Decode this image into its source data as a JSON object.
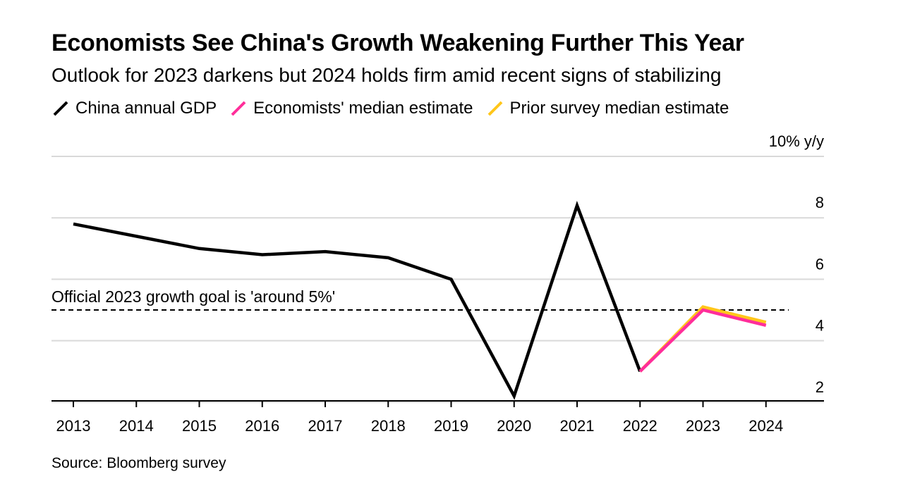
{
  "header": {
    "title": "Economists See China's Growth Weakening Further This Year",
    "subtitle": "Outlook for 2023 darkens but 2024 holds firm amid recent signs of stabilizing"
  },
  "legend": [
    {
      "label": "China annual GDP",
      "color": "#000000"
    },
    {
      "label": "Economists' median estimate",
      "color": "#ff2e9a"
    },
    {
      "label": "Prior survey median estimate",
      "color": "#ffc61a"
    }
  ],
  "source": "Source: Bloomberg survey",
  "chart_data": {
    "type": "line",
    "title": "Economists See China's Growth Weakening Further This Year",
    "subtitle": "Outlook for 2023 darkens but 2024 holds firm amid recent signs of stabilizing",
    "xlabel": "",
    "ylabel": "10% y/y",
    "x": [
      "2013",
      "2014",
      "2015",
      "2016",
      "2017",
      "2018",
      "2019",
      "2020",
      "2021",
      "2022",
      "2023",
      "2024"
    ],
    "ylim": [
      1.6,
      10
    ],
    "yticks": [
      {
        "value": 10,
        "label": "10% y/y"
      },
      {
        "value": 8,
        "label": "8"
      },
      {
        "value": 6,
        "label": "6"
      },
      {
        "value": 4,
        "label": "4"
      },
      {
        "value": 2,
        "label": "2"
      }
    ],
    "series": [
      {
        "name": "China annual GDP",
        "color": "#000000",
        "points": [
          [
            2013,
            7.8
          ],
          [
            2014,
            7.4
          ],
          [
            2015,
            7.0
          ],
          [
            2016,
            6.8
          ],
          [
            2017,
            6.9
          ],
          [
            2018,
            6.7
          ],
          [
            2019,
            6.0
          ],
          [
            2020,
            2.2
          ],
          [
            2021,
            8.4
          ],
          [
            2022,
            3.0
          ]
        ]
      },
      {
        "name": "Prior survey median estimate",
        "color": "#ffc61a",
        "points": [
          [
            2022,
            3.0
          ],
          [
            2023,
            5.1
          ],
          [
            2024,
            4.6
          ]
        ]
      },
      {
        "name": "Economists' median estimate",
        "color": "#ff2e9a",
        "points": [
          [
            2022,
            3.0
          ],
          [
            2023,
            5.0
          ],
          [
            2024,
            4.5
          ]
        ]
      }
    ],
    "reference_line": {
      "value": 5,
      "label": "Official 2023 growth goal is 'around 5%'",
      "style": "dashed"
    },
    "grid": true,
    "legend_position": "top-left"
  }
}
